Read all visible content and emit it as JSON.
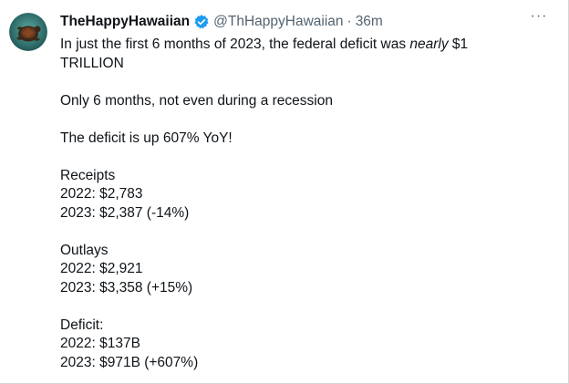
{
  "tweet": {
    "author": {
      "display_name": "TheHappyHawaiian",
      "handle": "@ThHappyHawaiian",
      "separator": "·",
      "time": "36m",
      "avatar_icon": "turtle-avatar-icon",
      "verified_icon": "verified-badge-icon",
      "verified_color": "#1d9bf0"
    },
    "more_icon": "more-options-icon",
    "more_label": "···",
    "text": {
      "intro_a": "In just the first 6 months of 2023, the federal deficit was ",
      "intro_em": "nearly",
      "intro_b": " $1",
      "intro_c": "TRILLION",
      "line_recession": "Only 6 months, not even during a recession",
      "line_deficit_up": "The deficit is up 607% YoY!",
      "receipts_title": "Receipts",
      "receipts_2022": "2022: $2,783",
      "receipts_2023": "2023: $2,387 (-14%)",
      "outlays_title": "Outlays",
      "outlays_2022": "2022: $2,921",
      "outlays_2023": "2023: $3,358 (+15%)",
      "deficit_title": "Deficit:",
      "deficit_2022": "2022: $137B",
      "deficit_2023": "2023: $971B (+607%)"
    }
  }
}
